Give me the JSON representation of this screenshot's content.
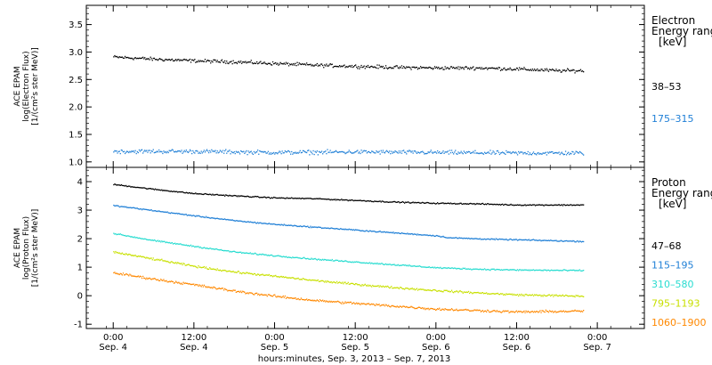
{
  "chart_data": [
    {
      "type": "scatter",
      "ylabel_lines": [
        "ACE EPAM",
        "log(Electron Flux)",
        "[1/(cm²s ster MeV)]"
      ],
      "ylim": [
        0.9,
        3.85
      ],
      "yticks": [
        "1.0",
        "1.5",
        "2.0",
        "2.5",
        "3.0",
        "3.5"
      ],
      "yticks_values": [
        1.0,
        1.5,
        2.0,
        2.5,
        3.0,
        3.5
      ],
      "legend": {
        "title_lines": [
          "Electron",
          "Energy range"
        ],
        "unit": "[keV]",
        "placement": "right"
      },
      "series": [
        {
          "name": "38–53",
          "color": "#000000",
          "noise": 0.045,
          "points": [
            [
              0,
              2.92
            ],
            [
              6,
              2.88
            ],
            [
              12,
              2.85
            ],
            [
              18,
              2.83
            ],
            [
              24,
              2.8
            ],
            [
              30,
              2.77
            ],
            [
              36,
              2.75
            ],
            [
              42,
              2.73
            ],
            [
              48,
              2.72
            ],
            [
              54,
              2.72
            ],
            [
              60,
              2.7
            ],
            [
              66,
              2.67
            ],
            [
              70,
              2.67
            ]
          ]
        },
        {
          "name": "175–315",
          "color": "#1f7fd6",
          "noise": 0.055,
          "points": [
            [
              0,
              1.2
            ],
            [
              12,
              1.2
            ],
            [
              24,
              1.18
            ],
            [
              36,
              1.19
            ],
            [
              48,
              1.18
            ],
            [
              60,
              1.17
            ],
            [
              70,
              1.17
            ]
          ]
        }
      ]
    },
    {
      "type": "scatter",
      "ylabel_lines": [
        "ACE EPAM",
        "log(Proton Flux)",
        "[1/(cm²s ster MeV)]"
      ],
      "ylim": [
        -1.15,
        4.5
      ],
      "yticks": [
        "-1",
        "0",
        "1",
        "2",
        "3",
        "4"
      ],
      "yticks_values": [
        -1,
        0,
        1,
        2,
        3,
        4
      ],
      "legend": {
        "title_lines": [
          "Proton",
          "Energy range"
        ],
        "unit": "[keV]",
        "placement": "right"
      },
      "series": [
        {
          "name": "47–68",
          "color": "#000000",
          "noise": 0.03,
          "points": [
            [
              0,
              3.92
            ],
            [
              6,
              3.75
            ],
            [
              12,
              3.6
            ],
            [
              18,
              3.52
            ],
            [
              24,
              3.45
            ],
            [
              30,
              3.42
            ],
            [
              36,
              3.36
            ],
            [
              42,
              3.3
            ],
            [
              48,
              3.26
            ],
            [
              54,
              3.24
            ],
            [
              60,
              3.2
            ],
            [
              70,
              3.2
            ]
          ]
        },
        {
          "name": "115–195",
          "color": "#1f7fd6",
          "noise": 0.03,
          "points": [
            [
              0,
              3.18
            ],
            [
              6,
              3.0
            ],
            [
              12,
              2.82
            ],
            [
              18,
              2.65
            ],
            [
              24,
              2.52
            ],
            [
              30,
              2.42
            ],
            [
              36,
              2.32
            ],
            [
              42,
              2.22
            ],
            [
              48,
              2.12
            ],
            [
              50,
              2.05
            ],
            [
              56,
              2.0
            ],
            [
              60,
              1.98
            ],
            [
              70,
              1.92
            ]
          ]
        },
        {
          "name": "310–580",
          "color": "#28dcd0",
          "noise": 0.035,
          "points": [
            [
              0,
              2.2
            ],
            [
              6,
              1.95
            ],
            [
              12,
              1.75
            ],
            [
              18,
              1.55
            ],
            [
              24,
              1.42
            ],
            [
              30,
              1.3
            ],
            [
              36,
              1.2
            ],
            [
              42,
              1.1
            ],
            [
              48,
              1.0
            ],
            [
              54,
              0.95
            ],
            [
              60,
              0.92
            ],
            [
              70,
              0.9
            ]
          ]
        },
        {
          "name": "795–1193",
          "color": "#c8e000",
          "noise": 0.05,
          "points": [
            [
              0,
              1.55
            ],
            [
              6,
              1.3
            ],
            [
              12,
              1.05
            ],
            [
              18,
              0.85
            ],
            [
              24,
              0.7
            ],
            [
              30,
              0.55
            ],
            [
              36,
              0.42
            ],
            [
              42,
              0.3
            ],
            [
              48,
              0.2
            ],
            [
              54,
              0.12
            ],
            [
              60,
              0.05
            ],
            [
              70,
              0.0
            ]
          ]
        },
        {
          "name": "1060–1900",
          "color": "#ff8800",
          "noise": 0.06,
          "points": [
            [
              0,
              0.82
            ],
            [
              6,
              0.6
            ],
            [
              12,
              0.4
            ],
            [
              18,
              0.18
            ],
            [
              24,
              0.0
            ],
            [
              30,
              -0.15
            ],
            [
              36,
              -0.25
            ],
            [
              42,
              -0.35
            ],
            [
              48,
              -0.45
            ],
            [
              54,
              -0.5
            ],
            [
              60,
              -0.55
            ],
            [
              70,
              -0.52
            ]
          ]
        }
      ]
    }
  ],
  "x_axis": {
    "range_hours": [
      -4,
      79
    ],
    "ticks": [
      {
        "value": 0,
        "time": "0:00",
        "date": "Sep. 4"
      },
      {
        "value": 12,
        "time": "12:00",
        "date": "Sep. 4"
      },
      {
        "value": 24,
        "time": "0:00",
        "date": "Sep. 5"
      },
      {
        "value": 36,
        "time": "12:00",
        "date": "Sep. 5"
      },
      {
        "value": 48,
        "time": "0:00",
        "date": "Sep. 6"
      },
      {
        "value": 60,
        "time": "12:00",
        "date": "Sep. 6"
      },
      {
        "value": 72,
        "time": "0:00",
        "date": "Sep. 7"
      }
    ],
    "label": "hours:minutes, Sep.  3, 2013 – Sep.  7, 2013"
  }
}
